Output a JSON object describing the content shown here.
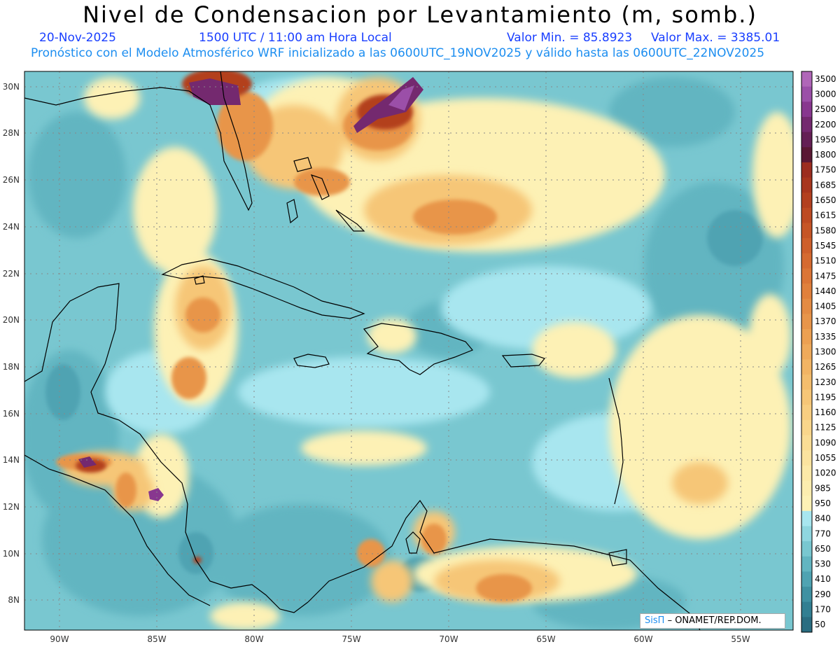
{
  "header": {
    "title": "Nivel de Condensacion por Levantamiento (m, somb.)",
    "date": "20-Nov-2025",
    "time": "1500 UTC / 11:00 am Hora Local",
    "min": "Valor Min. = 85.8923",
    "max": "Valor Max. = 3385.01",
    "forecast": "Pronóstico con el Modelo Atmosférico WRF inicializado a las 0600UTC_19NOV2025 y válido hasta las  0600UTC_22NOV2025"
  },
  "map": {
    "lat_labels": [
      "30N",
      "28N",
      "26N",
      "24N",
      "22N",
      "20N",
      "18N",
      "16N",
      "14N",
      "12N",
      "10N",
      "8N"
    ],
    "lon_labels": [
      "90W",
      "85W",
      "80W",
      "75W",
      "70W",
      "65W",
      "60W",
      "55W"
    ]
  },
  "colorbar": {
    "labels": [
      "3500",
      "3000",
      "2500",
      "2200",
      "1950",
      "1800",
      "1750",
      "1685",
      "1650",
      "1615",
      "1580",
      "1545",
      "1510",
      "1475",
      "1440",
      "1405",
      "1370",
      "1335",
      "1300",
      "1265",
      "1230",
      "1195",
      "1160",
      "1125",
      "1090",
      "1055",
      "1020",
      "985",
      "950",
      "840",
      "770",
      "650",
      "530",
      "410",
      "290",
      "170",
      "50"
    ],
    "colors": [
      "#b066b8",
      "#9b4fa8",
      "#88378f",
      "#74296f",
      "#641f55",
      "#5a1834",
      "#9c2d1f",
      "#a8361e",
      "#b3401f",
      "#bd4a22",
      "#c65526",
      "#ce5f2b",
      "#d56a30",
      "#db7536",
      "#e0803c",
      "#e48b43",
      "#e8954a",
      "#eca052",
      "#efaa5b",
      "#f2b464",
      "#f4bd6d",
      "#f6c677",
      "#f8ce81",
      "#f9d68b",
      "#fadd95",
      "#fbe39f",
      "#fce9a8",
      "#fcedaf",
      "#fdf1b5",
      "#a8e6ef",
      "#8fd6df",
      "#79c7d0",
      "#62b5c1",
      "#4fa3b2",
      "#3f91a2",
      "#327f92",
      "#2a6d81"
    ]
  },
  "badge": {
    "brand": "SisΠ",
    "org": "– ONAMET/REP.DOM."
  }
}
